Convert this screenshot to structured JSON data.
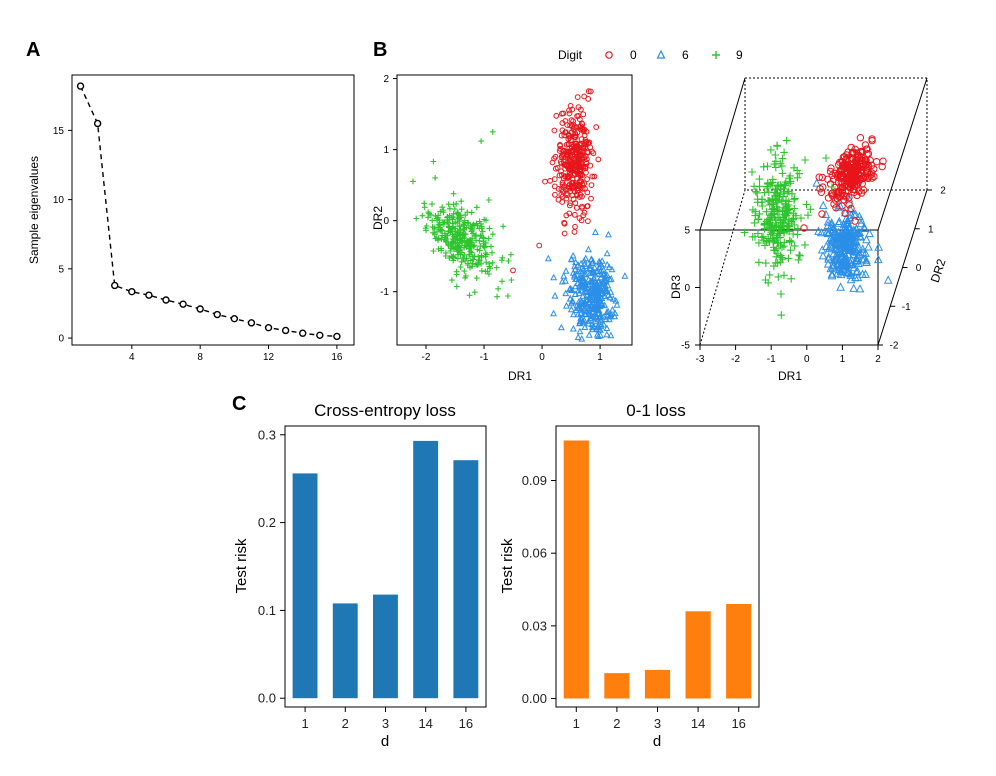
{
  "panels": {
    "a": "A",
    "b": "B",
    "c": "C"
  },
  "legend": {
    "title": "Digit",
    "items": [
      {
        "label": "0",
        "color": "#e8151b",
        "marker": "circle"
      },
      {
        "label": "6",
        "color": "#2b8fe8",
        "marker": "triangle"
      },
      {
        "label": "9",
        "color": "#2ec42e",
        "marker": "plus"
      }
    ]
  },
  "chart_data": [
    {
      "id": "eigen",
      "type": "line",
      "ylabel": "Sample eigenvalues",
      "xlabel": "",
      "xlim": [
        0.5,
        17
      ],
      "ylim": [
        -0.5,
        19
      ],
      "xticks": [
        4,
        8,
        12,
        16
      ],
      "yticks": [
        0,
        5,
        10,
        15
      ],
      "x": [
        1,
        2,
        3,
        4,
        5,
        6,
        7,
        8,
        9,
        10,
        11,
        12,
        13,
        14,
        15,
        16
      ],
      "y": [
        18.2,
        15.5,
        3.8,
        3.35,
        3.1,
        2.75,
        2.45,
        2.1,
        1.7,
        1.4,
        1.1,
        0.75,
        0.55,
        0.35,
        0.2,
        0.12
      ]
    },
    {
      "id": "scatter2d",
      "type": "scatter",
      "xlabel": "DR1",
      "ylabel": "DR2",
      "xlim": [
        -2.5,
        1.55
      ],
      "ylim": [
        -1.75,
        2.05
      ],
      "xticks": [
        -2,
        -1,
        0,
        1
      ],
      "yticks": [
        -1,
        0,
        1,
        2
      ],
      "series": [
        {
          "name": "0",
          "center": [
            0.55,
            0.85
          ],
          "spread": [
            0.15,
            0.38
          ],
          "rho": 0.15,
          "n": 330
        },
        {
          "name": "6",
          "center": [
            0.85,
            -1.05
          ],
          "spread": [
            0.22,
            0.28
          ],
          "rho": -0.2,
          "n": 330
        },
        {
          "name": "9",
          "center": [
            -1.4,
            -0.25
          ],
          "spread": [
            0.3,
            0.3
          ],
          "rho": -0.55,
          "n": 330
        }
      ]
    },
    {
      "id": "scatter3d",
      "type": "scatter",
      "xlabel": "DR1",
      "ylabel": "DR2",
      "zlabel": "DR3",
      "xticks": [
        "-3",
        "-2",
        "-1",
        "0",
        "1",
        "2"
      ],
      "yticks": [
        "-2",
        "-1",
        "0",
        "1",
        "2"
      ],
      "zticks": [
        "-5",
        "0",
        "5"
      ]
    },
    {
      "id": "ce",
      "type": "bar",
      "title": "Cross-entropy loss",
      "xlabel": "d",
      "ylabel": "Test risk",
      "categories": [
        "1",
        "2",
        "3",
        "14",
        "16"
      ],
      "values": [
        0.256,
        0.108,
        0.118,
        0.293,
        0.271
      ],
      "ylim": [
        -0.01,
        0.31
      ],
      "yticks": [
        "0.0",
        "0.1",
        "0.2",
        "0.3"
      ],
      "color": "#1f77b4"
    },
    {
      "id": "zo",
      "type": "bar",
      "title": "0-1 loss",
      "xlabel": "d",
      "ylabel": "Test risk",
      "categories": [
        "1",
        "2",
        "3",
        "14",
        "16"
      ],
      "values": [
        0.1065,
        0.0105,
        0.0118,
        0.036,
        0.039
      ],
      "ylim": [
        -0.0035,
        0.1125
      ],
      "yticks": [
        "0.00",
        "0.03",
        "0.06",
        "0.09"
      ],
      "color": "#ff7f0e"
    }
  ]
}
